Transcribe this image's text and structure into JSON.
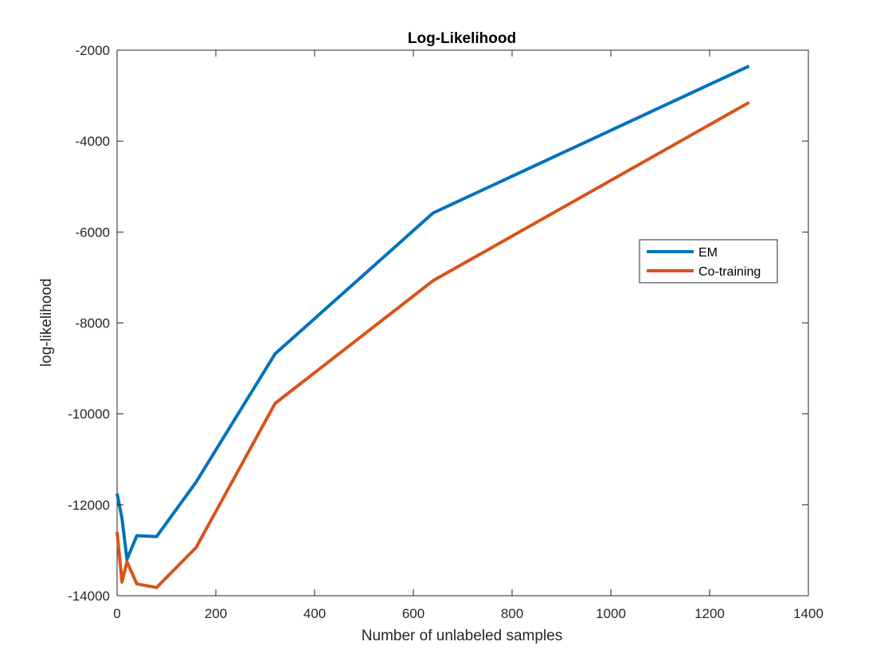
{
  "chart_data": {
    "type": "line",
    "title": "Log-Likelihood",
    "xlabel": "Number of unlabeled samples",
    "ylabel": "log-likelihood",
    "xlim": [
      0,
      1400
    ],
    "ylim": [
      -14000,
      -2000
    ],
    "xticks": [
      0,
      200,
      400,
      600,
      800,
      1000,
      1200,
      1400
    ],
    "yticks": [
      -14000,
      -12000,
      -10000,
      -8000,
      -6000,
      -4000,
      -2000
    ],
    "xtick_labels": [
      "0",
      "200",
      "400",
      "600",
      "800",
      "1000",
      "1200",
      "1400"
    ],
    "ytick_labels": [
      "-14000",
      "-12000",
      "-10000",
      "-8000",
      "-6000",
      "-4000",
      "-2000"
    ],
    "grid": false,
    "legend_position": "right",
    "series": [
      {
        "name": "EM",
        "color": "#0072BD",
        "x": [
          0,
          10,
          20,
          40,
          80,
          160,
          320,
          640,
          1280
        ],
        "y": [
          -11750,
          -12300,
          -13200,
          -12680,
          -12700,
          -11500,
          -8680,
          -5580,
          -2350
        ]
      },
      {
        "name": "Co-training",
        "color": "#D95319",
        "x": [
          0,
          10,
          20,
          40,
          80,
          160,
          320,
          640,
          1280
        ],
        "y": [
          -12600,
          -13700,
          -13250,
          -13740,
          -13820,
          -12940,
          -9770,
          -7070,
          -3150
        ]
      }
    ]
  }
}
